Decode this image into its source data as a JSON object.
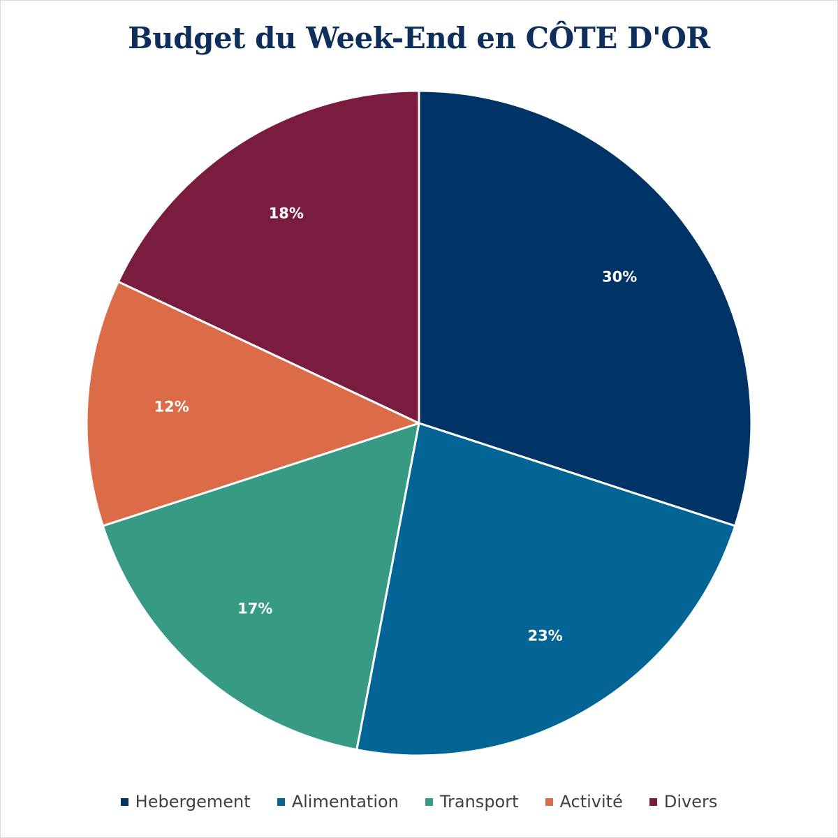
{
  "chart_data": {
    "type": "pie",
    "title": "Budget du Week-End en CÔTE D'OR",
    "legend_position": "bottom",
    "slices": [
      {
        "name": "Hebergement",
        "value": 30,
        "label": "30%",
        "color": "#003366"
      },
      {
        "name": "Alimentation",
        "value": 23,
        "label": "23%",
        "color": "#036496"
      },
      {
        "name": "Transport",
        "value": 17,
        "label": "17%",
        "color": "#379a84"
      },
      {
        "name": "Activité",
        "value": 12,
        "label": "12%",
        "color": "#dc6c48"
      },
      {
        "name": "Divers",
        "value": 18,
        "label": "18%",
        "color": "#7a1c40"
      }
    ],
    "start_angle_deg": 0,
    "direction": "clockwise"
  }
}
